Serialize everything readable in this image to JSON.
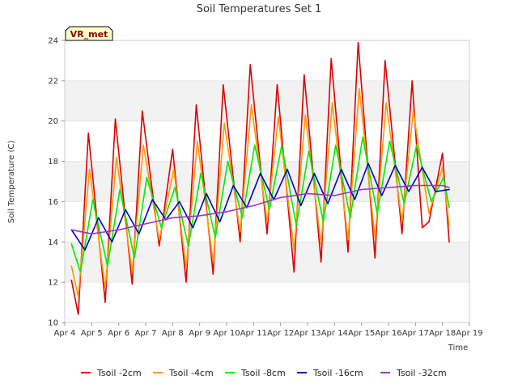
{
  "chart_data": {
    "type": "line",
    "title": "Soil Temperatures Set 1",
    "xlabel": "Time",
    "ylabel": "Soil Temperature (C)",
    "badge": "VR_met",
    "ylim": [
      10,
      24
    ],
    "xlim": [
      "Apr 4",
      "Apr 19"
    ],
    "y_ticks": [
      "10",
      "12",
      "14",
      "16",
      "18",
      "20",
      "22",
      "24"
    ],
    "x_ticks": [
      "Apr 4",
      "Apr 5",
      "Apr 6",
      "Apr 7",
      "Apr 8",
      "Apr 9",
      "Apr 10",
      "Apr 11",
      "Apr 12",
      "Apr 13",
      "Apr 14",
      "Apr 15",
      "Apr 16",
      "Apr 17",
      "Apr 18",
      "Apr 19"
    ],
    "grid": "horizontal bands",
    "legend_position": "bottom",
    "series": [
      {
        "name": "Tsoil -2cm",
        "color": "#dd0000",
        "points": [
          [
            "Apr 4 06:00",
            12.1
          ],
          [
            "Apr 4 12:00",
            10.4
          ],
          [
            "Apr 4 21:00",
            19.4
          ],
          [
            "Apr 5 12:00",
            11.0
          ],
          [
            "Apr 5 21:00",
            20.1
          ],
          [
            "Apr 6 12:00",
            11.9
          ],
          [
            "Apr 6 21:00",
            20.5
          ],
          [
            "Apr 7 12:00",
            13.8
          ],
          [
            "Apr 8 00:00",
            18.6
          ],
          [
            "Apr 8 12:00",
            12.0
          ],
          [
            "Apr 8 21:00",
            20.8
          ],
          [
            "Apr 9 12:00",
            12.4
          ],
          [
            "Apr 9 21:00",
            21.8
          ],
          [
            "Apr 10 12:00",
            14.0
          ],
          [
            "Apr 10 21:00",
            22.8
          ],
          [
            "Apr 11 12:00",
            14.4
          ],
          [
            "Apr 11 21:00",
            21.8
          ],
          [
            "Apr 12 12:00",
            12.5
          ],
          [
            "Apr 12 21:00",
            22.3
          ],
          [
            "Apr 13 12:00",
            13.0
          ],
          [
            "Apr 13 21:00",
            23.1
          ],
          [
            "Apr 14 12:00",
            13.5
          ],
          [
            "Apr 14 21:00",
            23.9
          ],
          [
            "Apr 15 12:00",
            13.2
          ],
          [
            "Apr 15 21:00",
            23.0
          ],
          [
            "Apr 16 12:00",
            14.4
          ],
          [
            "Apr 16 21:00",
            22.0
          ],
          [
            "Apr 17 06:00",
            14.7
          ],
          [
            "Apr 17 12:00",
            15.0
          ],
          [
            "Apr 18 00:00",
            18.4
          ],
          [
            "Apr 18 06:00",
            14.0
          ]
        ]
      },
      {
        "name": "Tsoil -4cm",
        "color": "#ff9900",
        "points": [
          [
            "Apr 4 06:00",
            12.8
          ],
          [
            "Apr 4 12:00",
            11.3
          ],
          [
            "Apr 4 22:00",
            17.6
          ],
          [
            "Apr 5 12:00",
            11.7
          ],
          [
            "Apr 5 22:00",
            18.2
          ],
          [
            "Apr 6 12:00",
            12.5
          ],
          [
            "Apr 6 22:00",
            18.8
          ],
          [
            "Apr 7 12:00",
            14.1
          ],
          [
            "Apr 8 01:00",
            17.6
          ],
          [
            "Apr 8 12:00",
            12.7
          ],
          [
            "Apr 8 22:00",
            19.0
          ],
          [
            "Apr 9 12:00",
            13.0
          ],
          [
            "Apr 9 22:00",
            19.9
          ],
          [
            "Apr 10 12:00",
            14.5
          ],
          [
            "Apr 10 22:00",
            20.8
          ],
          [
            "Apr 11 12:00",
            15.0
          ],
          [
            "Apr 11 22:00",
            20.2
          ],
          [
            "Apr 12 12:00",
            13.6
          ],
          [
            "Apr 12 22:00",
            20.3
          ],
          [
            "Apr 13 12:00",
            13.9
          ],
          [
            "Apr 13 22:00",
            20.9
          ],
          [
            "Apr 14 12:00",
            14.1
          ],
          [
            "Apr 14 22:00",
            21.6
          ],
          [
            "Apr 15 12:00",
            14.2
          ],
          [
            "Apr 15 22:00",
            20.9
          ],
          [
            "Apr 16 12:00",
            15.0
          ],
          [
            "Apr 16 22:00",
            20.5
          ],
          [
            "Apr 17 12:00",
            15.4
          ],
          [
            "Apr 18 00:00",
            17.7
          ],
          [
            "Apr 18 06:00",
            14.8
          ]
        ]
      },
      {
        "name": "Tsoil -8cm",
        "color": "#00ee00",
        "points": [
          [
            "Apr 4 06:00",
            13.9
          ],
          [
            "Apr 4 14:00",
            12.5
          ],
          [
            "Apr 5 01:00",
            16.1
          ],
          [
            "Apr 5 14:00",
            12.8
          ],
          [
            "Apr 6 01:00",
            16.6
          ],
          [
            "Apr 6 14:00",
            13.2
          ],
          [
            "Apr 7 01:00",
            17.2
          ],
          [
            "Apr 7 14:00",
            14.7
          ],
          [
            "Apr 8 02:00",
            16.7
          ],
          [
            "Apr 8 14:00",
            13.8
          ],
          [
            "Apr 9 01:00",
            17.4
          ],
          [
            "Apr 9 14:00",
            14.2
          ],
          [
            "Apr 10 01:00",
            18.0
          ],
          [
            "Apr 10 14:00",
            15.2
          ],
          [
            "Apr 11 01:00",
            18.8
          ],
          [
            "Apr 11 14:00",
            15.6
          ],
          [
            "Apr 12 01:00",
            18.8
          ],
          [
            "Apr 12 14:00",
            14.8
          ],
          [
            "Apr 13 01:00",
            18.5
          ],
          [
            "Apr 13 14:00",
            15.0
          ],
          [
            "Apr 14 01:00",
            18.8
          ],
          [
            "Apr 14 14:00",
            15.2
          ],
          [
            "Apr 15 01:00",
            19.2
          ],
          [
            "Apr 15 14:00",
            15.4
          ],
          [
            "Apr 16 01:00",
            19.0
          ],
          [
            "Apr 16 14:00",
            15.9
          ],
          [
            "Apr 17 01:00",
            18.8
          ],
          [
            "Apr 17 14:00",
            16.0
          ],
          [
            "Apr 18 01:00",
            17.2
          ],
          [
            "Apr 18 06:00",
            15.7
          ]
        ]
      },
      {
        "name": "Tsoil -16cm",
        "color": "#0000cc",
        "points": [
          [
            "Apr 4 06:00",
            14.6
          ],
          [
            "Apr 4 18:00",
            13.6
          ],
          [
            "Apr 5 06:00",
            15.2
          ],
          [
            "Apr 5 18:00",
            14.0
          ],
          [
            "Apr 6 06:00",
            15.6
          ],
          [
            "Apr 6 18:00",
            14.4
          ],
          [
            "Apr 7 06:00",
            16.1
          ],
          [
            "Apr 7 18:00",
            15.1
          ],
          [
            "Apr 8 06:00",
            16.0
          ],
          [
            "Apr 8 18:00",
            14.7
          ],
          [
            "Apr 9 06:00",
            16.4
          ],
          [
            "Apr 9 18:00",
            15.0
          ],
          [
            "Apr 10 06:00",
            16.8
          ],
          [
            "Apr 10 18:00",
            15.7
          ],
          [
            "Apr 11 06:00",
            17.4
          ],
          [
            "Apr 11 18:00",
            16.1
          ],
          [
            "Apr 12 06:00",
            17.6
          ],
          [
            "Apr 12 18:00",
            15.8
          ],
          [
            "Apr 13 06:00",
            17.4
          ],
          [
            "Apr 13 18:00",
            15.9
          ],
          [
            "Apr 14 06:00",
            17.6
          ],
          [
            "Apr 14 18:00",
            16.1
          ],
          [
            "Apr 15 06:00",
            17.9
          ],
          [
            "Apr 15 18:00",
            16.3
          ],
          [
            "Apr 16 06:00",
            17.8
          ],
          [
            "Apr 16 18:00",
            16.5
          ],
          [
            "Apr 17 06:00",
            17.7
          ],
          [
            "Apr 17 18:00",
            16.5
          ],
          [
            "Apr 18 06:00",
            16.6
          ]
        ]
      },
      {
        "name": "Tsoil -32cm",
        "color": "#9933cc",
        "points": [
          [
            "Apr 4 06:00",
            14.6
          ],
          [
            "Apr 5 00:00",
            14.4
          ],
          [
            "Apr 6 00:00",
            14.6
          ],
          [
            "Apr 7 00:00",
            14.9
          ],
          [
            "Apr 8 00:00",
            15.2
          ],
          [
            "Apr 9 00:00",
            15.3
          ],
          [
            "Apr 10 00:00",
            15.5
          ],
          [
            "Apr 11 00:00",
            15.8
          ],
          [
            "Apr 12 00:00",
            16.2
          ],
          [
            "Apr 13 00:00",
            16.4
          ],
          [
            "Apr 14 00:00",
            16.3
          ],
          [
            "Apr 15 00:00",
            16.6
          ],
          [
            "Apr 16 00:00",
            16.7
          ],
          [
            "Apr 17 00:00",
            16.8
          ],
          [
            "Apr 18 00:00",
            16.8
          ],
          [
            "Apr 18 06:00",
            16.7
          ]
        ]
      }
    ]
  }
}
